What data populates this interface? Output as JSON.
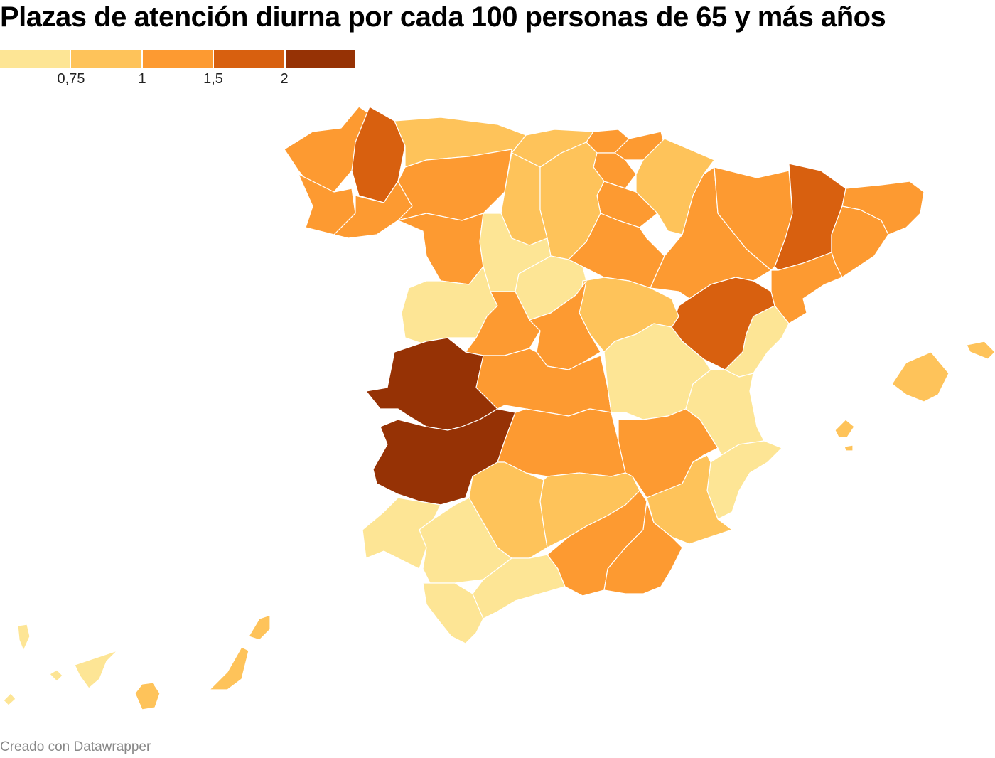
{
  "title": "Plazas de atención diurna por cada 100 personas de 65 y más años",
  "legend": {
    "colors": [
      "#fde595",
      "#fec35a",
      "#fd9a31",
      "#d8600f",
      "#963205"
    ],
    "ticks": [
      "0,75",
      "1",
      "1,5",
      "2"
    ]
  },
  "credit": "Creado con Datawrapper"
}
